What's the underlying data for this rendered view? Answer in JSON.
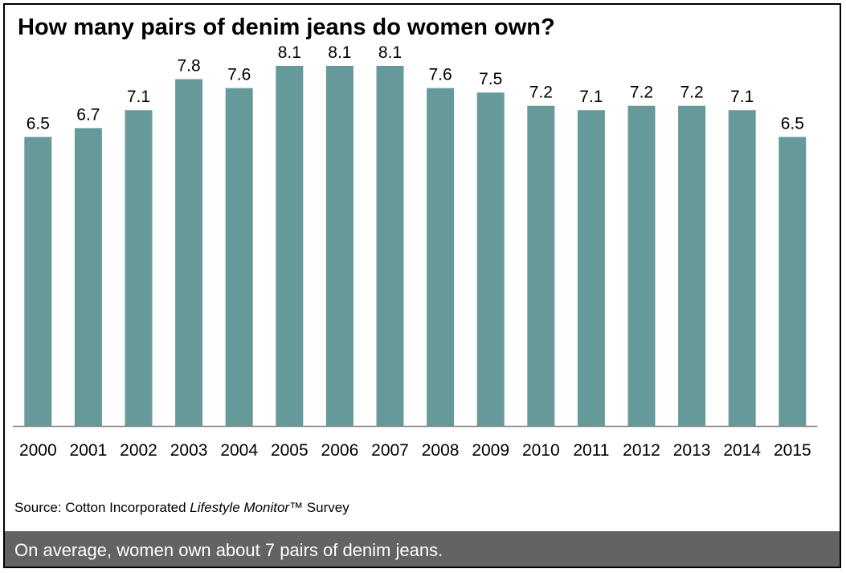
{
  "chart_data": {
    "type": "bar",
    "title": "How many pairs of denim jeans do women own?",
    "categories": [
      "2000",
      "2001",
      "2002",
      "2003",
      "2004",
      "2005",
      "2006",
      "2007",
      "2008",
      "2009",
      "2010",
      "2011",
      "2012",
      "2013",
      "2014",
      "2015"
    ],
    "values": [
      6.5,
      6.7,
      7.1,
      7.8,
      7.6,
      8.1,
      8.1,
      8.1,
      7.6,
      7.5,
      7.2,
      7.1,
      7.2,
      7.2,
      7.1,
      6.5
    ],
    "value_labels": [
      "6.5",
      "6.7",
      "7.1",
      "7.8",
      "7.6",
      "8.1",
      "8.1",
      "8.1",
      "7.6",
      "7.5",
      "7.2",
      "7.1",
      "7.2",
      "7.2",
      "7.1",
      "6.5"
    ],
    "xlabel": "",
    "ylabel": "",
    "ylim": [
      0,
      9.4
    ],
    "grid": false,
    "bar_color": "#669999"
  },
  "source": {
    "prefix": "Source: Cotton Incorporated ",
    "italic": "Lifestyle Monitor",
    "suffix": "™ Survey"
  },
  "footer": {
    "text": "On average, women own about 7 pairs of denim jeans."
  }
}
